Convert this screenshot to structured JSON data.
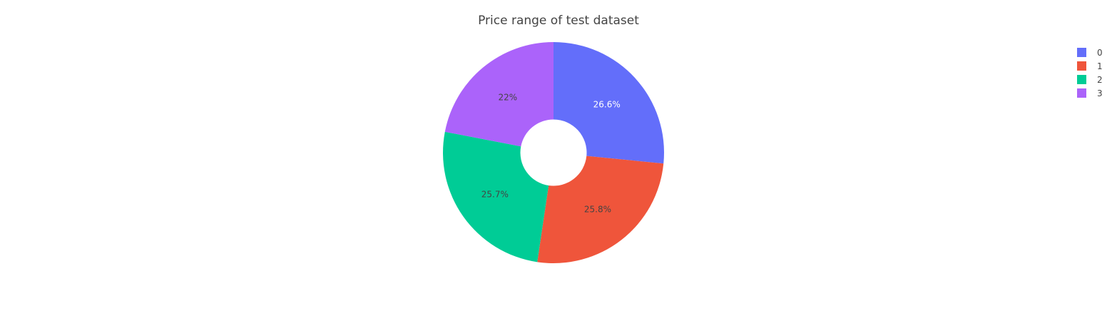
{
  "chart_data": {
    "type": "pie",
    "hole": 0.3,
    "title": "Price range of test dataset",
    "categories": [
      "0",
      "1",
      "2",
      "3"
    ],
    "values": [
      26.6,
      25.8,
      25.7,
      22.0
    ],
    "labels_text": [
      "26.6%",
      "25.8%",
      "25.7%",
      "22%"
    ],
    "colors": [
      "#636efa",
      "#EF553B",
      "#00cc96",
      "#ab63fa"
    ],
    "label_colors": [
      "#ffffff",
      "#444444",
      "#444444",
      "#444444"
    ],
    "legend": "top-right",
    "direction": "clockwise",
    "start_angle": 90
  }
}
